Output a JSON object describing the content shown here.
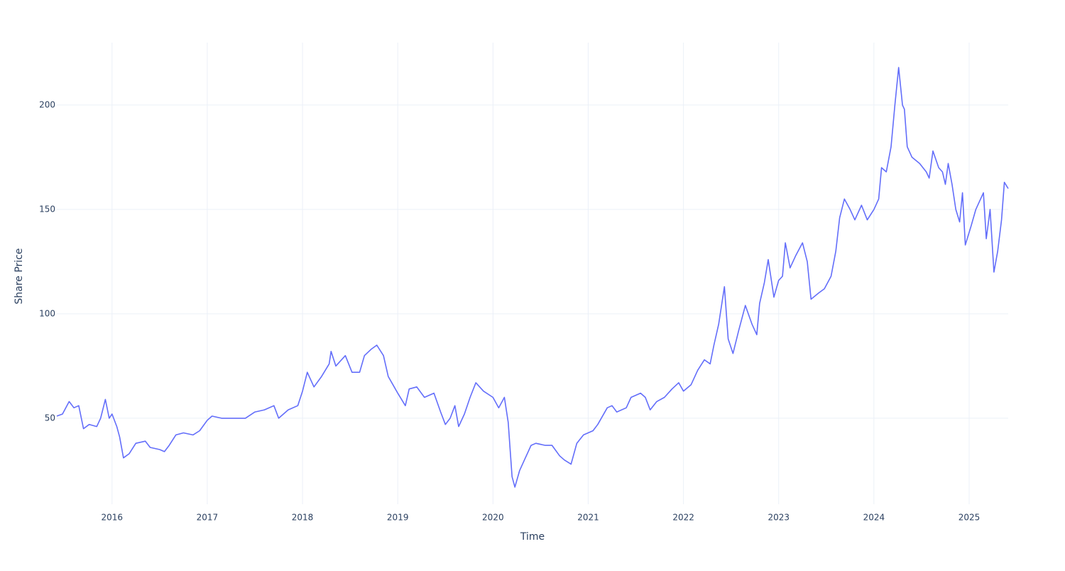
{
  "chart_data": {
    "type": "line",
    "xlabel": "Time",
    "ylabel": "Share Price",
    "x": [
      2015.42,
      2015.48,
      2015.55,
      2015.6,
      2015.65,
      2015.7,
      2015.76,
      2015.84,
      2015.88,
      2015.93,
      2015.97,
      2016.0,
      2016.05,
      2016.08,
      2016.12,
      2016.18,
      2016.25,
      2016.35,
      2016.4,
      2016.5,
      2016.55,
      2016.6,
      2016.67,
      2016.75,
      2016.85,
      2016.92,
      2017.0,
      2017.05,
      2017.15,
      2017.3,
      2017.4,
      2017.5,
      2017.6,
      2017.7,
      2017.75,
      2017.85,
      2017.95,
      2018.0,
      2018.05,
      2018.12,
      2018.2,
      2018.28,
      2018.3,
      2018.35,
      2018.45,
      2018.52,
      2018.6,
      2018.65,
      2018.72,
      2018.78,
      2018.85,
      2018.9,
      2018.95,
      2019.0,
      2019.08,
      2019.12,
      2019.2,
      2019.28,
      2019.38,
      2019.45,
      2019.5,
      2019.55,
      2019.6,
      2019.64,
      2019.7,
      2019.76,
      2019.82,
      2019.9,
      2020.0,
      2020.06,
      2020.12,
      2020.16,
      2020.2,
      2020.23,
      2020.28,
      2020.33,
      2020.4,
      2020.45,
      2020.55,
      2020.62,
      2020.7,
      2020.75,
      2020.82,
      2020.88,
      2020.95,
      2021.05,
      2021.1,
      2021.2,
      2021.25,
      2021.3,
      2021.4,
      2021.45,
      2021.55,
      2021.6,
      2021.65,
      2021.72,
      2021.8,
      2021.88,
      2021.95,
      2022.0,
      2022.08,
      2022.15,
      2022.22,
      2022.28,
      2022.32,
      2022.37,
      2022.43,
      2022.47,
      2022.52,
      2022.58,
      2022.65,
      2022.72,
      2022.77,
      2022.8,
      2022.85,
      2022.89,
      2022.95,
      2023.0,
      2023.04,
      2023.07,
      2023.12,
      2023.18,
      2023.25,
      2023.3,
      2023.34,
      2023.42,
      2023.48,
      2023.55,
      2023.6,
      2023.64,
      2023.69,
      2023.75,
      2023.8,
      2023.87,
      2023.93,
      2024.0,
      2024.05,
      2024.08,
      2024.13,
      2024.18,
      2024.22,
      2024.26,
      2024.3,
      2024.32,
      2024.35,
      2024.4,
      2024.48,
      2024.55,
      2024.58,
      2024.62,
      2024.68,
      2024.72,
      2024.75,
      2024.78,
      2024.82,
      2024.86,
      2024.9,
      2024.93,
      2024.96,
      2025.02,
      2025.07,
      2025.15,
      2025.18,
      2025.22,
      2025.26,
      2025.3,
      2025.34,
      2025.37,
      2025.41
    ],
    "series": [
      {
        "color": "#636efa",
        "values": [
          51,
          52,
          58,
          55,
          56,
          45,
          47,
          46,
          50,
          59,
          50,
          52,
          46,
          41,
          31,
          33,
          38,
          39,
          36,
          35,
          34,
          37,
          42,
          43,
          42,
          44,
          49,
          51,
          50,
          50,
          50,
          53,
          54,
          56,
          50,
          54,
          56,
          63,
          72,
          65,
          70,
          76,
          82,
          75,
          80,
          72,
          72,
          80,
          83,
          85,
          80,
          70,
          66,
          62,
          56,
          64,
          65,
          60,
          62,
          53,
          47,
          50,
          56,
          46,
          52,
          60,
          67,
          63,
          60,
          55,
          60,
          48,
          22,
          17,
          25,
          30,
          37,
          38,
          37,
          37,
          32,
          30,
          28,
          38,
          42,
          44,
          47,
          55,
          56,
          53,
          55,
          60,
          62,
          60,
          54,
          58,
          60,
          64,
          67,
          63,
          66,
          73,
          78,
          76,
          85,
          95,
          113,
          88,
          81,
          92,
          104,
          95,
          90,
          105,
          115,
          126,
          108,
          116,
          118,
          134,
          122,
          128,
          134,
          125,
          107,
          110,
          112,
          118,
          130,
          146,
          155,
          150,
          145,
          152,
          145,
          150,
          155,
          170,
          168,
          180,
          200,
          218,
          200,
          198,
          180,
          175,
          172,
          168,
          165,
          178,
          170,
          168,
          162,
          172,
          162,
          150,
          144,
          158,
          133,
          142,
          150,
          158,
          136,
          150,
          120,
          130,
          145,
          163,
          160
        ]
      }
    ],
    "xlim": [
      2015.42,
      2025.41
    ],
    "xticks": [
      2016,
      2017,
      2018,
      2019,
      2020,
      2021,
      2022,
      2023,
      2024,
      2025
    ],
    "ylim": [
      8.8,
      229.9
    ],
    "yticks": [
      50,
      100,
      150,
      200
    ],
    "grid": true
  }
}
